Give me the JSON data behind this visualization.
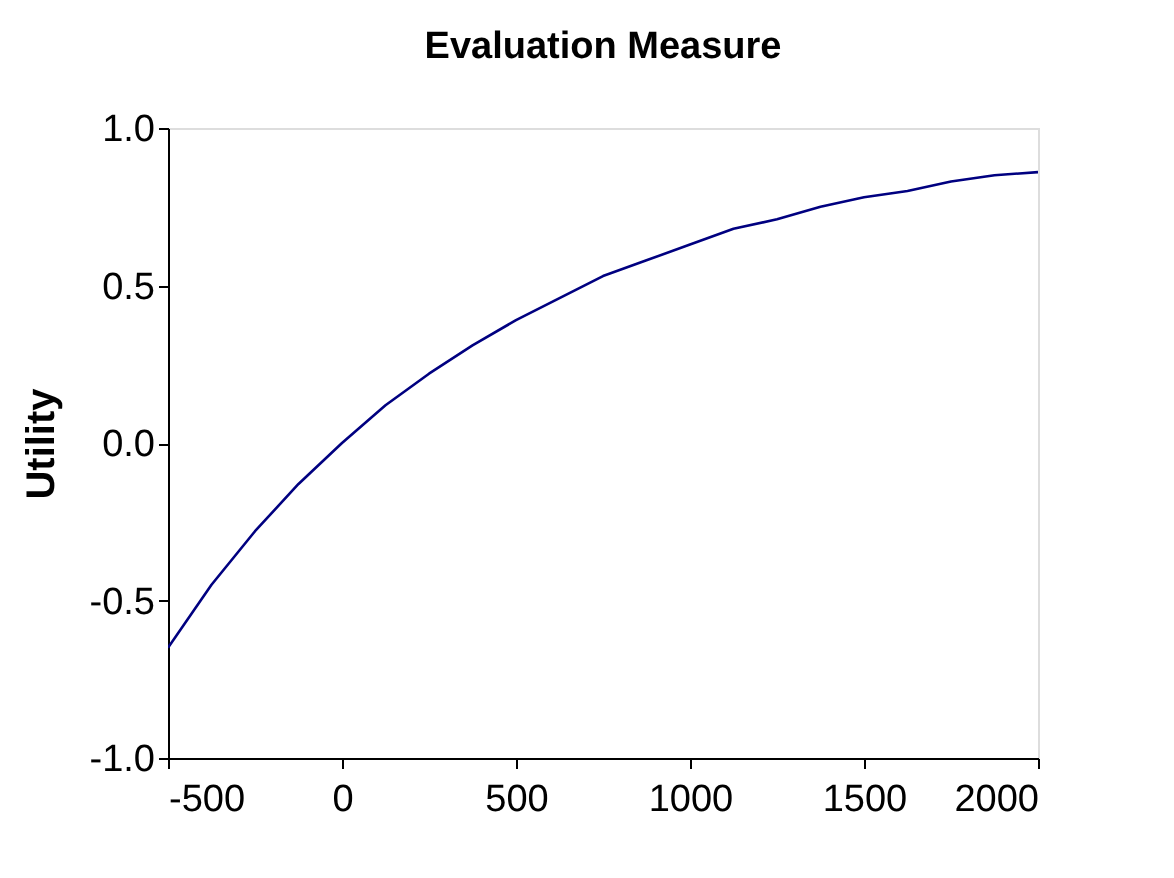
{
  "chart_data": {
    "type": "line",
    "title": "Evaluation Measure",
    "ylabel": "Utility",
    "x": [
      -500,
      -375,
      -250,
      -125,
      0,
      125,
      250,
      375,
      500,
      625,
      750,
      875,
      1000,
      1125,
      1250,
      1375,
      1500,
      1625,
      1750,
      1875,
      2000
    ],
    "series": [
      {
        "color": "#000080",
        "values": [
          -0.65,
          -0.45,
          -0.28,
          -0.13,
          0,
          0.12,
          0.22,
          0.31,
          0.39,
          0.46,
          0.53,
          0.58,
          0.63,
          0.68,
          0.71,
          0.75,
          0.78,
          0.8,
          0.83,
          0.85,
          0.86
        ]
      }
    ],
    "xlim": [
      -500,
      2000
    ],
    "xticks": [
      -500,
      0,
      500,
      1000,
      1500,
      2000
    ],
    "ylim": [
      -1,
      1
    ],
    "yticks": [
      {
        "value": -1,
        "label": "-1.0"
      },
      {
        "value": -0.5,
        "label": "-0.5"
      },
      {
        "value": 0,
        "label": "0.0"
      },
      {
        "value": 0.5,
        "label": "0.5"
      },
      {
        "value": 1,
        "label": "1.0"
      }
    ],
    "grid": false,
    "marker": "none",
    "line_style": "solid"
  }
}
